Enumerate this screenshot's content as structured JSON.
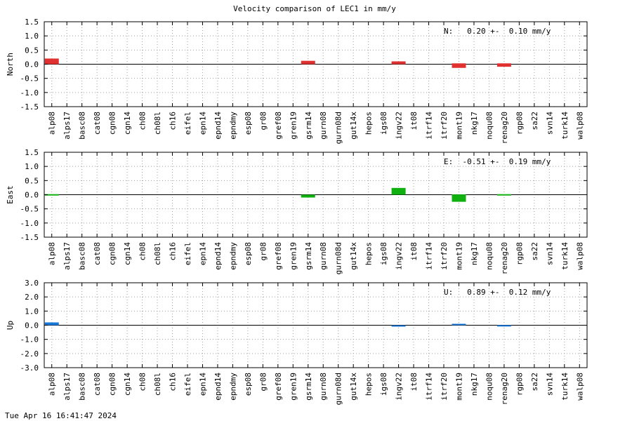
{
  "title": "Velocity comparison of LEC1 in mm/y",
  "footer": "Tue Apr 16 16:41:47 2024",
  "chart_data": {
    "type": "bar",
    "title": "Velocity comparison of LEC1 in mm/y",
    "categories": [
      "alp08",
      "alps17",
      "basc08",
      "cat08",
      "cgn08",
      "cgn14",
      "ch08",
      "ch08l",
      "ch16",
      "eifel",
      "epn14",
      "epnd14",
      "epndmy",
      "esp08",
      "gr08",
      "gref08",
      "gren19",
      "gsrm14",
      "gurn08",
      "gurn08d",
      "gut14x",
      "hepos",
      "igs08",
      "ingv22",
      "it08",
      "itrf14",
      "itrf20",
      "mont19",
      "nkg17",
      "noqu08",
      "renag20",
      "rgp08",
      "sa22",
      "svn14",
      "turk14",
      "walp08"
    ],
    "grid": true,
    "panels": [
      {
        "ylabel": "North",
        "ylim": [
          -1.5,
          1.5
        ],
        "yticks": [
          "1.5",
          "1.0",
          "0.5",
          "0.0",
          "-0.5",
          "-1.0",
          "-1.5"
        ],
        "color": "#e03030",
        "annotation": "N:   0.20 +-  0.10 mm/y",
        "series": [
          {
            "category": "alp08",
            "center": 0.1,
            "half_height": 0.1
          },
          {
            "category": "gsrm14",
            "center": 0.06,
            "half_height": 0.06
          },
          {
            "category": "ingv22",
            "center": 0.05,
            "half_height": 0.05
          },
          {
            "category": "mont19",
            "center": -0.05,
            "half_height": 0.08
          },
          {
            "category": "renag20",
            "center": -0.03,
            "half_height": 0.06
          }
        ]
      },
      {
        "ylabel": "East",
        "ylim": [
          -1.5,
          1.5
        ],
        "yticks": [
          "1.5",
          "1.0",
          "0.5",
          "0.0",
          "-0.5",
          "-1.0",
          "-1.5"
        ],
        "color": "#10b010",
        "annotation": "E:  -0.51 +-  0.19 mm/y",
        "series": [
          {
            "category": "alp08",
            "center": 0.0,
            "half_height": 0.02
          },
          {
            "category": "gsrm14",
            "center": -0.05,
            "half_height": 0.05
          },
          {
            "category": "ingv22",
            "center": 0.12,
            "half_height": 0.12
          },
          {
            "category": "mont19",
            "center": -0.12,
            "half_height": 0.13
          },
          {
            "category": "renag20",
            "center": 0.0,
            "half_height": 0.02
          }
        ]
      },
      {
        "ylabel": "Up",
        "ylim": [
          -3.0,
          3.0
        ],
        "yticks": [
          "3.0",
          "2.0",
          "1.0",
          "0.0",
          "-1.0",
          "-2.0",
          "-3.0"
        ],
        "color": "#1a78d8",
        "annotation": "U:   0.89 +-  0.12 mm/y",
        "series": [
          {
            "category": "alp08",
            "center": 0.1,
            "half_height": 0.1
          },
          {
            "category": "ingv22",
            "center": -0.05,
            "half_height": 0.05
          },
          {
            "category": "mont19",
            "center": 0.05,
            "half_height": 0.05
          },
          {
            "category": "renag20",
            "center": -0.03,
            "half_height": 0.04
          }
        ]
      }
    ]
  }
}
